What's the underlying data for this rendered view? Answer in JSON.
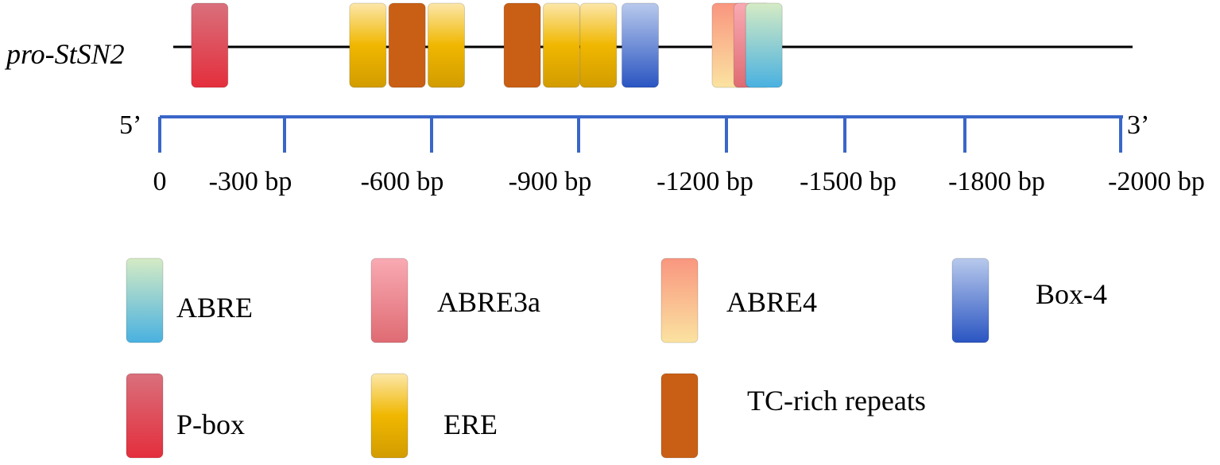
{
  "gene": {
    "name": "pro-StSN2",
    "five_prime": "5’",
    "three_prime": "3’"
  },
  "scale": {
    "ticks": [
      {
        "label": "0",
        "bp": 0
      },
      {
        "label": "-300 bp",
        "bp": 300
      },
      {
        "label": "-600 bp",
        "bp": 600
      },
      {
        "label": "-900 bp",
        "bp": 900
      },
      {
        "label": "-1200 bp",
        "bp": 1200
      },
      {
        "label": "-1500 bp",
        "bp": 1500
      },
      {
        "label": "-1800 bp",
        "bp": 1800
      },
      {
        "label": "-2000 bp",
        "bp": 2000
      }
    ]
  },
  "element_types": [
    {
      "id": "ABRE",
      "label": "ABRE",
      "colors": [
        "#d5ebc4",
        "#49b1e0"
      ]
    },
    {
      "id": "ABRE3a",
      "label": "ABRE3a",
      "colors": [
        "#f9aab3",
        "#df6b73"
      ]
    },
    {
      "id": "ABRE4",
      "label": "ABRE4",
      "colors": [
        "#f9967f",
        "#fbe3a1"
      ]
    },
    {
      "id": "Box-4",
      "label": "Box-4",
      "colors": [
        "#b8c9ec",
        "#2a55c2"
      ]
    },
    {
      "id": "P-box",
      "label": "P-box",
      "colors": [
        "#d9707c",
        "#e42e3c"
      ]
    },
    {
      "id": "ERE",
      "label": "ERE",
      "colors": [
        "#fce7a9",
        "#f0b700",
        "#d29c00"
      ]
    },
    {
      "id": "TC-rich",
      "label": "TC-rich repeats",
      "colors": [
        "#c95f14",
        "#c95f14"
      ]
    }
  ],
  "elements": [
    {
      "type": "P-box",
      "bp": 120
    },
    {
      "type": "ERE",
      "bp": 470
    },
    {
      "type": "TC-rich",
      "bp": 550
    },
    {
      "type": "ERE",
      "bp": 630
    },
    {
      "type": "TC-rich",
      "bp": 785
    },
    {
      "type": "ERE",
      "bp": 865
    },
    {
      "type": "ERE",
      "bp": 940
    },
    {
      "type": "Box-4",
      "bp": 1025
    },
    {
      "type": "ABRE4",
      "bp": 1210
    },
    {
      "type": "ABRE3a",
      "bp": 1265
    },
    {
      "type": "ABRE",
      "bp": 1295
    }
  ]
}
